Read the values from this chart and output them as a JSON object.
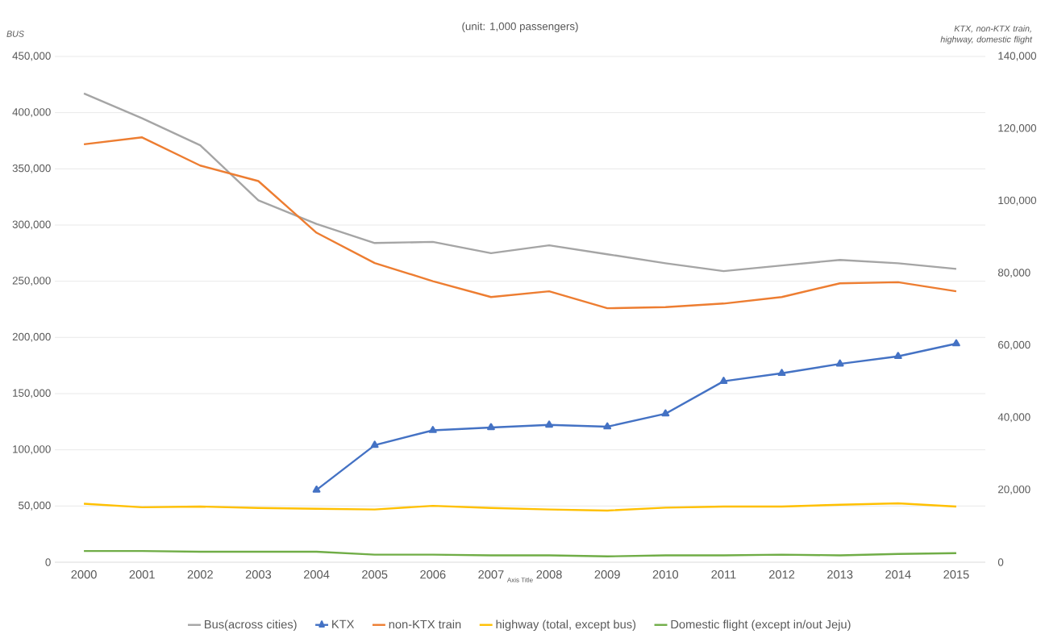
{
  "chart_data": {
    "type": "line",
    "title": "(unit: 1,000 passengers)",
    "xlabel": "Axis Title",
    "ylabel": "BUS",
    "y2label": "KTX, non-KTX train, highway, domestic flight",
    "categories": [
      "2000",
      "2001",
      "2002",
      "2003",
      "2004",
      "2005",
      "2006",
      "2007",
      "2008",
      "2009",
      "2010",
      "2011",
      "2012",
      "2013",
      "2014",
      "2015"
    ],
    "series": [
      {
        "name": "Bus(across cities)",
        "color": "#a5a5a5",
        "values": [
          417000,
          395000,
          371000,
          322000,
          301000,
          284000,
          285000,
          275000,
          282000,
          274000,
          266000,
          259000,
          264000,
          269000,
          266000,
          261000
        ]
      },
      {
        "name": "KTX",
        "color": "#4472c4",
        "axis": "y2",
        "marker": "triangle",
        "values": [
          null,
          null,
          null,
          null,
          20000,
          32400,
          36500,
          37300,
          38000,
          37500,
          41100,
          50100,
          52300,
          54900,
          57000,
          60500
        ]
      },
      {
        "name": "non-KTX train",
        "color": "#ed7d31",
        "axis": "y2",
        "values": [
          115700,
          117600,
          109800,
          105500,
          91200,
          82800,
          77800,
          73400,
          75000,
          70300,
          70600,
          71600,
          73400,
          77200,
          77500,
          75000
        ]
      },
      {
        "name": "highway (total, except bus)",
        "color": "#ffc000",
        "axis": "y2",
        "values": [
          16200,
          15200,
          15400,
          15000,
          14800,
          14600,
          15600,
          15000,
          14600,
          14300,
          15100,
          15400,
          15400,
          15900,
          16300,
          15400
        ]
      },
      {
        "name": "Domestic flight (except in/out Jeju)",
        "color": "#70ad47",
        "axis": "y2",
        "values": [
          3100,
          3100,
          2900,
          2900,
          2900,
          2100,
          2100,
          1900,
          1900,
          1600,
          1900,
          1900,
          2100,
          1900,
          2300,
          2500
        ]
      }
    ],
    "ylim": [
      0,
      450000
    ],
    "yticks": [
      {
        "value": 0,
        "label": "0"
      },
      {
        "value": 50000,
        "label": "50,000"
      },
      {
        "value": 100000,
        "label": "100,000"
      },
      {
        "value": 150000,
        "label": "150,000"
      },
      {
        "value": 200000,
        "label": "200,000"
      },
      {
        "value": 250000,
        "label": "250,000"
      },
      {
        "value": 300000,
        "label": "300,000"
      },
      {
        "value": 350000,
        "label": "350,000"
      },
      {
        "value": 400000,
        "label": "400,000"
      },
      {
        "value": 450000,
        "label": "450,000"
      }
    ],
    "y2lim": [
      0,
      140000
    ],
    "y2ticks": [
      {
        "value": 0,
        "label": "0"
      },
      {
        "value": 20000,
        "label": "20,000"
      },
      {
        "value": 40000,
        "label": "40,000"
      },
      {
        "value": 60000,
        "label": "60,000"
      },
      {
        "value": 80000,
        "label": "80,000"
      },
      {
        "value": 100000,
        "label": "100,000"
      },
      {
        "value": 120000,
        "label": "120,000"
      },
      {
        "value": 140000,
        "label": "140,000"
      }
    ],
    "grid": "y",
    "legend": "bottom"
  }
}
